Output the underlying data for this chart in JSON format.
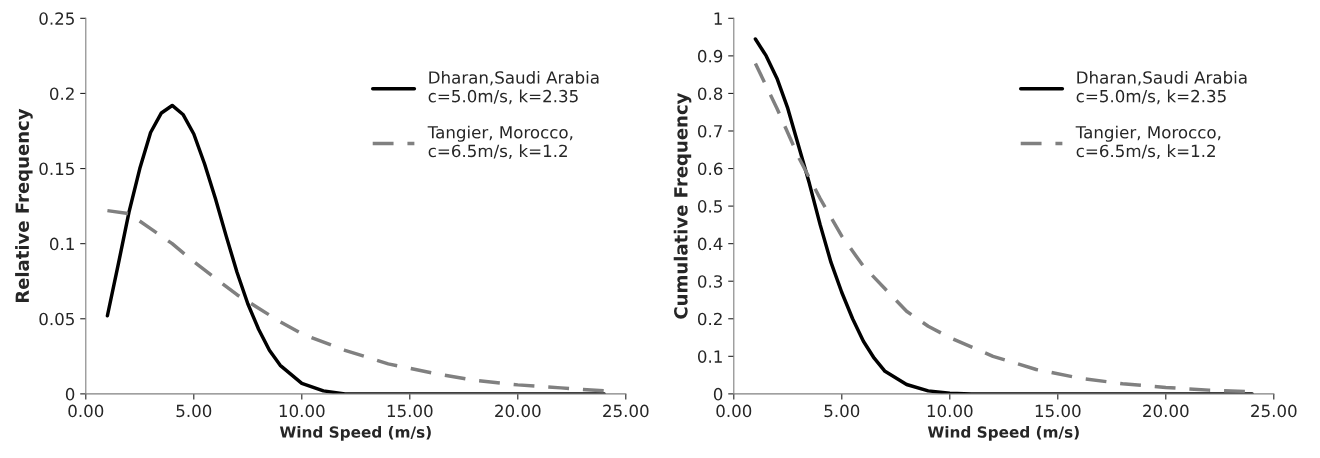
{
  "chart_data": [
    {
      "type": "line",
      "xlabel": "Wind Speed (m/s)",
      "ylabel": "Relative Frequency",
      "xlim": [
        0,
        25
      ],
      "ylim": [
        0,
        0.25
      ],
      "xticks": [
        {
          "value": 0,
          "label": "0.00"
        },
        {
          "value": 5,
          "label": "5.00"
        },
        {
          "value": 10,
          "label": "10.00"
        },
        {
          "value": 15,
          "label": "15.00"
        },
        {
          "value": 20,
          "label": "20.00"
        },
        {
          "value": 25,
          "label": "25.00"
        }
      ],
      "yticks": [
        0,
        0.05,
        0.1,
        0.15,
        0.2,
        0.25
      ],
      "grid": false,
      "legend": "top right",
      "marker": "none",
      "series": [
        {
          "name": "Dharan,Saudi Arabia\nc=5.0m/s, k=2.35",
          "color": "#000000",
          "line_style": "solid",
          "x": [
            1,
            1.5,
            2,
            2.5,
            3,
            3.5,
            4,
            4.5,
            5,
            5.5,
            6,
            6.5,
            7,
            7.5,
            8,
            8.5,
            9,
            10,
            11,
            12,
            14,
            16,
            18,
            20,
            22,
            24
          ],
          "values": [
            0.052,
            0.086,
            0.121,
            0.15,
            0.174,
            0.187,
            0.192,
            0.186,
            0.173,
            0.153,
            0.13,
            0.105,
            0.081,
            0.06,
            0.043,
            0.029,
            0.019,
            0.007,
            0.002,
            0,
            0,
            0,
            0,
            0,
            0,
            0
          ]
        },
        {
          "name": "Tangier, Morocco,\nc=6.5m/s, k=1.2",
          "color": "#808080",
          "line_style": "dashed",
          "x": [
            1,
            2,
            3,
            4,
            5,
            6,
            7,
            8,
            9,
            10,
            12,
            14,
            16,
            18,
            20,
            22,
            24
          ],
          "values": [
            0.122,
            0.12,
            0.11,
            0.1,
            0.088,
            0.077,
            0.066,
            0.057,
            0.048,
            0.04,
            0.029,
            0.02,
            0.014,
            0.009,
            0.006,
            0.004,
            0.002
          ]
        }
      ]
    },
    {
      "type": "line",
      "xlabel": "Wind Speed (m/s)",
      "ylabel": "Cumulative Frequency",
      "xlim": [
        0,
        25
      ],
      "ylim": [
        0,
        1
      ],
      "xticks": [
        {
          "value": 0,
          "label": "0.00"
        },
        {
          "value": 5,
          "label": "5.00"
        },
        {
          "value": 10,
          "label": "10.00"
        },
        {
          "value": 15,
          "label": "15.00"
        },
        {
          "value": 20,
          "label": "20.00"
        },
        {
          "value": 25,
          "label": "25.00"
        }
      ],
      "yticks": [
        0,
        0.1,
        0.2,
        0.3,
        0.4,
        0.5,
        0.6,
        0.7,
        0.8,
        0.9,
        1
      ],
      "grid": false,
      "legend": "top right",
      "marker": "none",
      "series": [
        {
          "name": "Dharan,Saudi Arabia\nc=5.0m/s, k=2.35",
          "color": "#000000",
          "line_style": "solid",
          "x": [
            1,
            1.5,
            2,
            2.5,
            3,
            3.5,
            4,
            4.5,
            5,
            5.5,
            6,
            6.5,
            7,
            8,
            9,
            10,
            11,
            12,
            14,
            16,
            18,
            20,
            22,
            24
          ],
          "values": [
            0.945,
            0.9,
            0.84,
            0.76,
            0.66,
            0.56,
            0.45,
            0.35,
            0.27,
            0.2,
            0.14,
            0.095,
            0.06,
            0.025,
            0.008,
            0.002,
            0,
            0,
            0,
            0,
            0,
            0,
            0,
            0
          ]
        },
        {
          "name": "Tangier, Morocco,\nc=6.5m/s, k=1.2",
          "color": "#808080",
          "line_style": "dashed",
          "x": [
            1,
            2,
            3,
            4,
            5,
            6,
            7,
            8,
            9,
            10,
            12,
            14,
            16,
            18,
            20,
            22,
            24
          ],
          "values": [
            0.88,
            0.76,
            0.63,
            0.52,
            0.42,
            0.34,
            0.28,
            0.22,
            0.18,
            0.15,
            0.1,
            0.065,
            0.042,
            0.027,
            0.017,
            0.01,
            0.006
          ]
        }
      ]
    }
  ]
}
